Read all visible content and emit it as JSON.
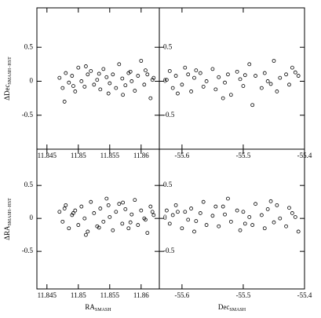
{
  "chart_data": [
    {
      "type": "scatter",
      "ylabel": "ΔDec",
      "ylabel_sub": "SMASH−HST",
      "xlim": [
        11.8434,
        11.8629
      ],
      "ylim": [
        -1.0,
        1.08
      ],
      "xticks": [
        11.845,
        11.85,
        11.855,
        11.86
      ],
      "yticks": [
        -0.5,
        0,
        0.5
      ],
      "color": "#000000",
      "x": [
        11.847,
        11.8475,
        11.848,
        11.8485,
        11.849,
        11.8495,
        11.85,
        11.8505,
        11.851,
        11.8515,
        11.852,
        11.8525,
        11.853,
        11.8535,
        11.854,
        11.8545,
        11.855,
        11.8555,
        11.856,
        11.8565,
        11.857,
        11.8575,
        11.858,
        11.8585,
        11.859,
        11.8595,
        11.86,
        11.8605,
        11.861,
        11.8615,
        11.862,
        11.8478,
        11.8512,
        11.8548,
        11.8583,
        11.8618,
        11.8492,
        11.8533,
        11.8571,
        11.8607
      ],
      "y": [
        0.05,
        -0.1,
        0.12,
        -0.02,
        0.08,
        -0.15,
        0.2,
        0.0,
        -0.08,
        0.1,
        0.15,
        -0.05,
        0.02,
        -0.12,
        0.18,
        0.06,
        -0.03,
        0.1,
        -0.1,
        0.25,
        0.04,
        -0.06,
        0.12,
        0.0,
        -0.14,
        0.08,
        0.3,
        -0.05,
        0.1,
        -0.25,
        0.05,
        -0.3,
        0.22,
        -0.18,
        0.14,
        0.02,
        -0.07,
        0.11,
        -0.2,
        0.16
      ]
    },
    {
      "type": "scatter",
      "xlim": [
        -55.637,
        -55.4
      ],
      "ylim": [
        -1.0,
        1.08
      ],
      "xticks": [
        -55.6,
        -55.5,
        -55.4
      ],
      "yticks": [
        -0.5,
        0,
        0.5
      ],
      "color": "#000000",
      "x": [
        -55.625,
        -55.62,
        -55.615,
        -55.61,
        -55.6,
        -55.595,
        -55.59,
        -55.585,
        -55.58,
        -55.57,
        -55.565,
        -55.56,
        -55.55,
        -55.545,
        -55.54,
        -55.53,
        -55.525,
        -55.52,
        -55.51,
        -55.505,
        -55.5,
        -55.49,
        -55.485,
        -55.48,
        -55.47,
        -55.465,
        -55.46,
        -55.45,
        -55.445,
        -55.44,
        -55.43,
        -55.425,
        -55.42,
        -55.41,
        -55.607,
        -55.577,
        -55.533,
        -55.497,
        -55.455,
        -55.415
      ],
      "y": [
        0.02,
        0.15,
        -0.1,
        0.08,
        -0.05,
        0.2,
        0.1,
        -0.15,
        0.05,
        0.12,
        -0.08,
        0.0,
        0.18,
        -0.12,
        0.06,
        -0.02,
        0.1,
        -0.2,
        0.14,
        0.03,
        -0.07,
        0.25,
        -0.35,
        0.08,
        -0.1,
        0.12,
        0.0,
        0.3,
        -0.15,
        0.05,
        0.1,
        -0.05,
        0.2,
        0.08,
        -0.18,
        0.16,
        -0.25,
        0.09,
        -0.04,
        0.13
      ]
    },
    {
      "type": "scatter",
      "ylabel": "ΔRA",
      "ylabel_sub": "SMASH−HST",
      "xlabel": "RA",
      "xlabel_sub": "SMASH",
      "xlim": [
        11.8434,
        11.8629
      ],
      "ylim": [
        -1.07,
        1.05
      ],
      "xticks": [
        11.845,
        11.85,
        11.855,
        11.86
      ],
      "yticks": [
        -0.5,
        0,
        0.5
      ],
      "color": "#000000",
      "x": [
        11.847,
        11.8475,
        11.848,
        11.8485,
        11.849,
        11.8495,
        11.85,
        11.8505,
        11.851,
        11.8515,
        11.852,
        11.8525,
        11.853,
        11.8535,
        11.854,
        11.8545,
        11.855,
        11.8555,
        11.856,
        11.8565,
        11.857,
        11.8575,
        11.858,
        11.8585,
        11.859,
        11.8595,
        11.86,
        11.8605,
        11.861,
        11.8615,
        11.862,
        11.8478,
        11.8512,
        11.8548,
        11.8583,
        11.8618,
        11.8492,
        11.8533,
        11.8571,
        11.8607
      ],
      "y": [
        0.1,
        -0.05,
        0.2,
        -0.15,
        0.05,
        0.12,
        -0.1,
        0.18,
        0.0,
        -0.2,
        0.25,
        0.08,
        -0.12,
        0.15,
        -0.05,
        0.3,
        0.02,
        -0.18,
        0.1,
        0.22,
        -0.08,
        0.14,
        -0.15,
        0.06,
        0.28,
        -0.1,
        0.12,
        0.0,
        -0.22,
        0.18,
        0.05,
        0.15,
        -0.25,
        0.2,
        -0.06,
        0.1,
        0.08,
        -0.14,
        0.24,
        -0.02
      ]
    },
    {
      "type": "scatter",
      "xlabel": "Dec",
      "xlabel_sub": "SMASH",
      "xlim": [
        -55.637,
        -55.4
      ],
      "ylim": [
        -1.07,
        1.05
      ],
      "xticks": [
        -55.6,
        -55.5,
        -55.4
      ],
      "yticks": [
        -0.5,
        0,
        0.5
      ],
      "color": "#000000",
      "x": [
        -55.625,
        -55.62,
        -55.615,
        -55.61,
        -55.6,
        -55.595,
        -55.59,
        -55.585,
        -55.58,
        -55.57,
        -55.565,
        -55.56,
        -55.55,
        -55.545,
        -55.54,
        -55.53,
        -55.525,
        -55.52,
        -55.51,
        -55.505,
        -55.5,
        -55.49,
        -55.485,
        -55.48,
        -55.47,
        -55.465,
        -55.46,
        -55.45,
        -55.445,
        -55.44,
        -55.43,
        -55.425,
        -55.42,
        -55.41,
        -55.607,
        -55.577,
        -55.533,
        -55.497,
        -55.455,
        -55.415
      ],
      "y": [
        0.12,
        -0.08,
        0.05,
        0.2,
        -0.15,
        0.1,
        -0.02,
        0.15,
        -0.2,
        0.08,
        0.25,
        -0.1,
        0.04,
        0.18,
        -0.12,
        0.06,
        0.3,
        -0.05,
        0.12,
        -0.18,
        0.1,
        0.02,
        -0.1,
        0.22,
        0.05,
        -0.15,
        0.14,
        -0.06,
        0.2,
        0.0,
        -0.12,
        0.16,
        0.08,
        -0.2,
        0.1,
        -0.04,
        0.18,
        -0.08,
        0.26,
        0.02
      ]
    }
  ]
}
